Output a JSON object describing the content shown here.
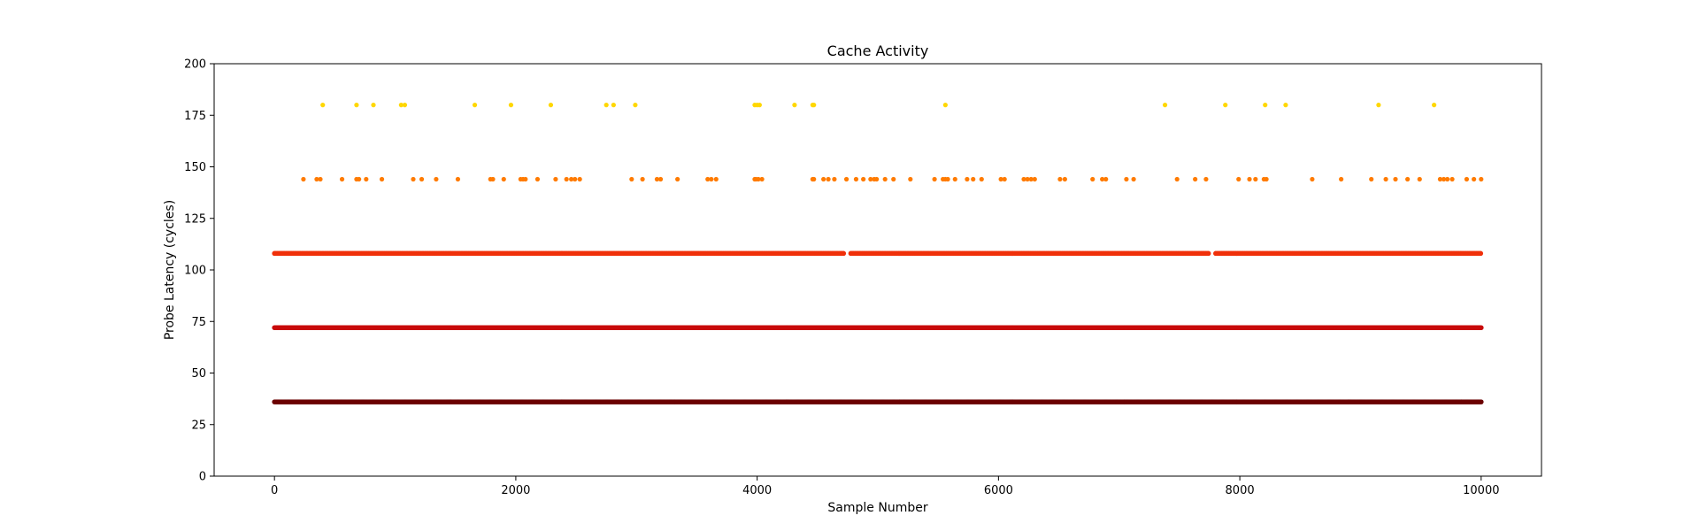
{
  "chart_data": {
    "type": "scatter",
    "title": "Cache Activity",
    "xlabel": "Sample Number",
    "ylabel": "Probe Latency (cycles)",
    "xlim": [
      -500,
      10500
    ],
    "ylim": [
      0,
      200
    ],
    "xticks": [
      0,
      2000,
      4000,
      6000,
      8000,
      10000
    ],
    "yticks": [
      0,
      25,
      50,
      75,
      100,
      125,
      150,
      175,
      200
    ],
    "grid": false,
    "levels": [
      {
        "y": 36,
        "color": "#6b0000",
        "x_range": [
          0,
          10000
        ],
        "density": "continuous"
      },
      {
        "y": 72,
        "color": "#c80a0a",
        "x_range": [
          0,
          10000
        ],
        "density": "continuous"
      },
      {
        "y": 108,
        "color": "#f0300a",
        "x_range": [
          0,
          10000
        ],
        "density": "near-continuous"
      },
      {
        "y": 144,
        "color": "#ff7b00",
        "density": "sparse",
        "x": [
          240,
          350,
          380,
          560,
          680,
          700,
          760,
          890,
          1150,
          1220,
          1340,
          1520,
          1790,
          1810,
          1900,
          2040,
          2060,
          2080,
          2180,
          2330,
          2420,
          2460,
          2490,
          2530,
          2960,
          3050,
          3170,
          3200,
          3340,
          3590,
          3620,
          3660,
          3980,
          3990,
          4010,
          4040,
          4460,
          4470,
          4550,
          4590,
          4640,
          4740,
          4820,
          4880,
          4940,
          4970,
          4990,
          5060,
          5130,
          5270,
          5470,
          5540,
          5560,
          5580,
          5640,
          5740,
          5790,
          5860,
          6020,
          6050,
          6210,
          6240,
          6270,
          6300,
          6510,
          6550,
          6780,
          6860,
          6890,
          7060,
          7120,
          7480,
          7630,
          7720,
          7990,
          8080,
          8130,
          8200,
          8220,
          8600,
          8840,
          9090,
          9210,
          9290,
          9390,
          9490,
          9660,
          9690,
          9720,
          9760,
          9880,
          9940,
          10000
        ]
      },
      {
        "y": 180,
        "color": "#ffd700",
        "density": "sparse",
        "x": [
          400,
          680,
          820,
          1050,
          1080,
          1660,
          1960,
          2290,
          2750,
          2810,
          2990,
          3980,
          4000,
          4020,
          4310,
          4460,
          4470,
          5560,
          7380,
          7880,
          8210,
          8380,
          9150,
          9610
        ]
      }
    ]
  }
}
